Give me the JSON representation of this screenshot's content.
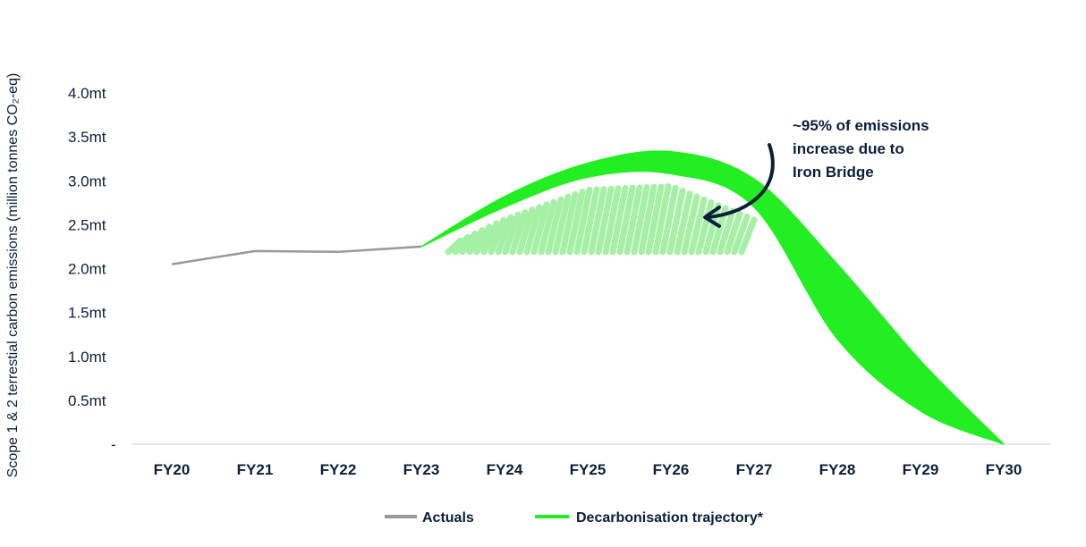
{
  "chart_data": {
    "type": "line",
    "ylabel": "Scope 1 & 2 terrestial carbon emissions (million tonnes CO₂-eq)",
    "yticks": [
      "-",
      "0.5mt",
      "1.0mt",
      "1.5mt",
      "2.0mt",
      "2.5mt",
      "3.0mt",
      "3.5mt",
      "4.0mt"
    ],
    "ylim": [
      0,
      4.0
    ],
    "categories": [
      "FY20",
      "FY21",
      "FY22",
      "FY23",
      "FY24",
      "FY25",
      "FY26",
      "FY27",
      "FY28",
      "FY29",
      "FY30"
    ],
    "highlight_category": "FY30",
    "grid": false,
    "legend_placement": "bottom",
    "series": [
      {
        "name": "Actuals",
        "color": "#999999",
        "x": [
          "FY20",
          "FY21",
          "FY22",
          "FY23"
        ],
        "values": [
          2.05,
          2.2,
          2.19,
          2.25
        ]
      },
      {
        "name": "Decarbonisation trajectory*",
        "color": "#22ee22",
        "type": "band",
        "x": [
          "FY23",
          "FY24",
          "FY25",
          "FY26",
          "FY27",
          "FY28",
          "FY29",
          "FY30"
        ],
        "upper": [
          2.25,
          2.82,
          3.2,
          3.33,
          3.02,
          2.05,
          0.95,
          0.0
        ],
        "lower": [
          2.25,
          2.7,
          3.04,
          3.08,
          2.7,
          1.2,
          0.38,
          0.0
        ]
      }
    ],
    "annotations": [
      {
        "lines": [
          "~95% of emissions",
          "increase due to",
          "Iron Bridge"
        ],
        "target": "FY24–FY27 emissions increase"
      }
    ]
  },
  "colors": {
    "text": "#0b1f3a",
    "axis": "#cccccc",
    "actuals": "#999999",
    "trajectory": "#22ee22",
    "hatch": "#a6f0a6",
    "highlight": "#22ee22",
    "arrow": "#0b1f3a"
  }
}
